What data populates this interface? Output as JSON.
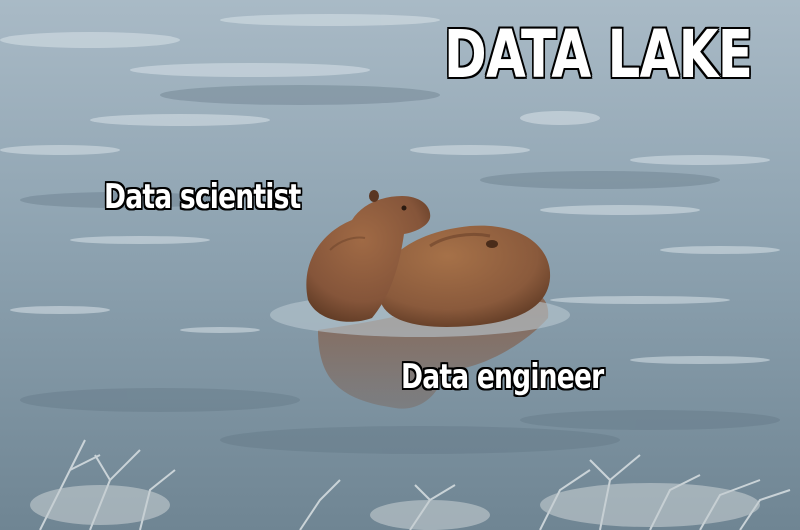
{
  "meme": {
    "title": "DATA LAKE",
    "labels": {
      "top_animal": "Data scientist",
      "bottom_animal": "Data engineer"
    }
  },
  "colors": {
    "water": "#7f96a4",
    "water_light": "#c9d6de",
    "capybara": "#8a5a3c",
    "capybara_dark": "#5e3a24",
    "caption_fill": "#ffffff",
    "caption_outline": "#000000"
  }
}
